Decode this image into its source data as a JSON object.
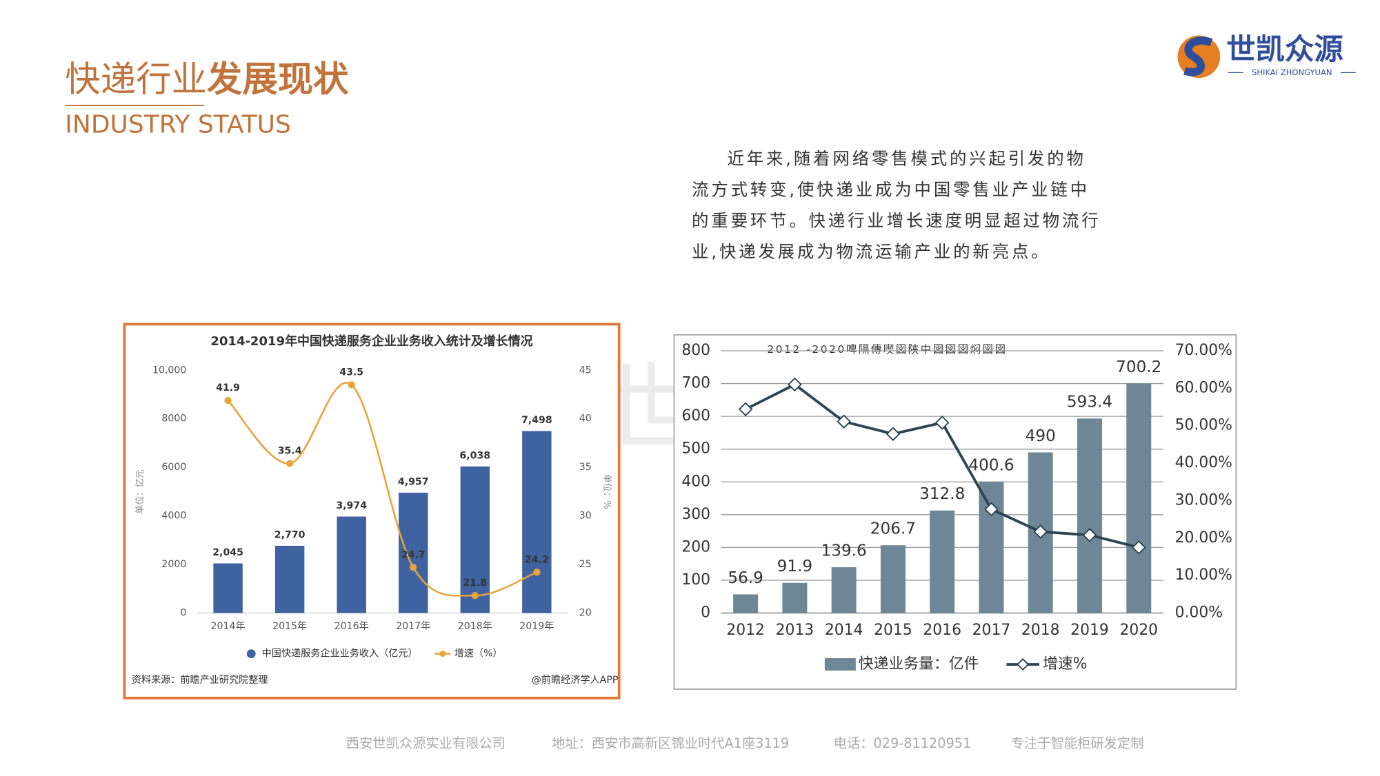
{
  "header": {
    "title_light": "快递行业",
    "title_bold": "发展现状",
    "subtitle": "INDUSTRY STATUS"
  },
  "logo": {
    "name": "世凯众源",
    "tagline": "SHIKAI ZHONGYUAN"
  },
  "paragraph": {
    "lines": [
      "近年来,随着网络零售模式的兴起引发的物",
      "流方式转变,使快递业成为中国零售业产业链中",
      "的重要环节。快递行业增长速度明显超过物流行",
      "业,快递发展成为物流运输产业的新亮点。"
    ]
  },
  "chart_data": [
    {
      "type": "bar",
      "title": "2014-2019年中国快递服务企业业务收入统计及增长情况",
      "categories": [
        "2014年",
        "2015年",
        "2016年",
        "2017年",
        "2018年",
        "2019年"
      ],
      "series": [
        {
          "name": "中国快递服务企业业务收入（亿元）",
          "type": "bar",
          "color": "#3f63a0",
          "values": [
            2045,
            2770,
            3974,
            4957,
            6038,
            7498
          ],
          "value_labels": [
            "2,045",
            "2,770",
            "3,974",
            "4,957",
            "6,038",
            "7,498"
          ]
        },
        {
          "name": "增速（%）",
          "type": "line",
          "axis": "y2",
          "color": "#e8a33a",
          "marker": "circle",
          "smooth": true,
          "values": [
            41.9,
            35.4,
            43.5,
            24.7,
            21.8,
            24.2
          ]
        }
      ],
      "ylim": [
        0,
        10000
      ],
      "yticks": [
        0,
        2000,
        4000,
        6000,
        8000,
        {
          "value": 10000,
          "label": "10,000"
        }
      ],
      "y2lim": [
        20,
        45
      ],
      "y2ticks": [
        20,
        25,
        30,
        35,
        40,
        45
      ],
      "ylabel": "单位：亿元",
      "y2label": "单位：%",
      "grid": false,
      "source": "资料来源：前瞻产业研究院整理",
      "credit": "@前瞻经济学人APP"
    },
    {
      "type": "bar",
      "title": "2012 -2020啤隔傳喫図陕中図図図焖図図",
      "categories": [
        "2012",
        "2013",
        "2014",
        "2015",
        "2016",
        "2017",
        "2018",
        "2019",
        "2020"
      ],
      "series": [
        {
          "name": "快递业务量：亿件",
          "type": "bar",
          "color": "#6d8796",
          "values": [
            56.9,
            91.9,
            139.6,
            206.7,
            312.8,
            400.6,
            490,
            593.4,
            700.2
          ]
        },
        {
          "name": "增速%",
          "type": "line",
          "axis": "y2",
          "color": "#2d4552",
          "marker": "diamond",
          "smooth": false,
          "values": [
            54.4,
            61.0,
            51.1,
            47.8,
            50.8,
            27.7,
            21.7,
            20.8,
            17.5
          ]
        }
      ],
      "ylim": [
        0,
        800
      ],
      "yticks": [
        0,
        100,
        200,
        300,
        400,
        500,
        600,
        700,
        800
      ],
      "y2lim": [
        0,
        70
      ],
      "y2ticks": [
        {
          "value": 0,
          "label": "0.00%"
        },
        {
          "value": 10,
          "label": "10.00%"
        },
        {
          "value": 20,
          "label": "20.00%"
        },
        {
          "value": 30,
          "label": "30.00%"
        },
        {
          "value": 40,
          "label": "40.00%"
        },
        {
          "value": 50,
          "label": "50.00%"
        },
        {
          "value": 60,
          "label": "60.00%"
        },
        {
          "value": 70,
          "label": "70.00%"
        }
      ],
      "grid": true
    }
  ],
  "footer": {
    "items": [
      "西安世凯众源实业有限公司",
      "地址：西安市高新区锦业时代A1座3119",
      "电话：029-81120951",
      "专注于智能柜研发定制"
    ]
  }
}
